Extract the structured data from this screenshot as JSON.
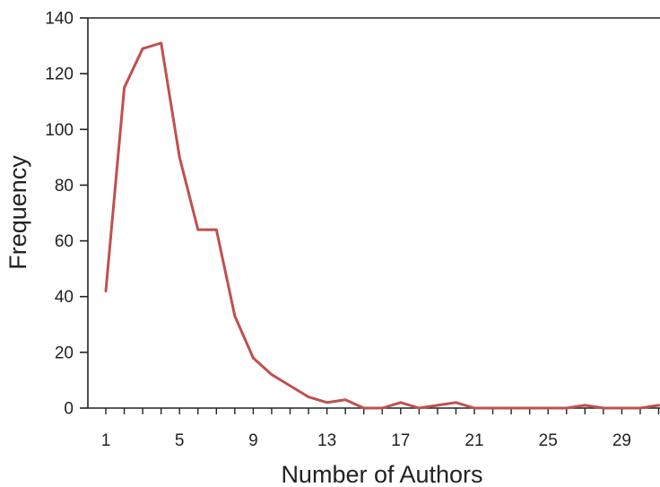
{
  "chart_data": {
    "type": "line",
    "title": "",
    "xlabel": "Number of Authors",
    "ylabel": "Frequency",
    "xlim": [
      1,
      31
    ],
    "ylim": [
      0,
      140
    ],
    "grid": false,
    "legend": "none",
    "x_ticks": [
      "1",
      "5",
      "9",
      "13",
      "17",
      "21",
      "25",
      "29"
    ],
    "y_ticks": [
      "0",
      "20",
      "40",
      "60",
      "80",
      "100",
      "120",
      "140"
    ],
    "series": [
      {
        "color": "#c0504d",
        "x": [
          1,
          2,
          3,
          4,
          5,
          6,
          7,
          8,
          9,
          10,
          11,
          12,
          13,
          14,
          15,
          16,
          17,
          18,
          19,
          20,
          21,
          22,
          23,
          24,
          25,
          26,
          27,
          28,
          29,
          30,
          31
        ],
        "y": [
          42,
          115,
          129,
          131,
          90,
          64,
          64,
          33,
          18,
          12,
          8,
          4,
          2,
          3,
          0,
          0,
          2,
          0,
          1,
          2,
          0,
          0,
          0,
          0,
          0,
          0,
          1,
          0,
          0,
          0,
          1
        ]
      }
    ]
  }
}
